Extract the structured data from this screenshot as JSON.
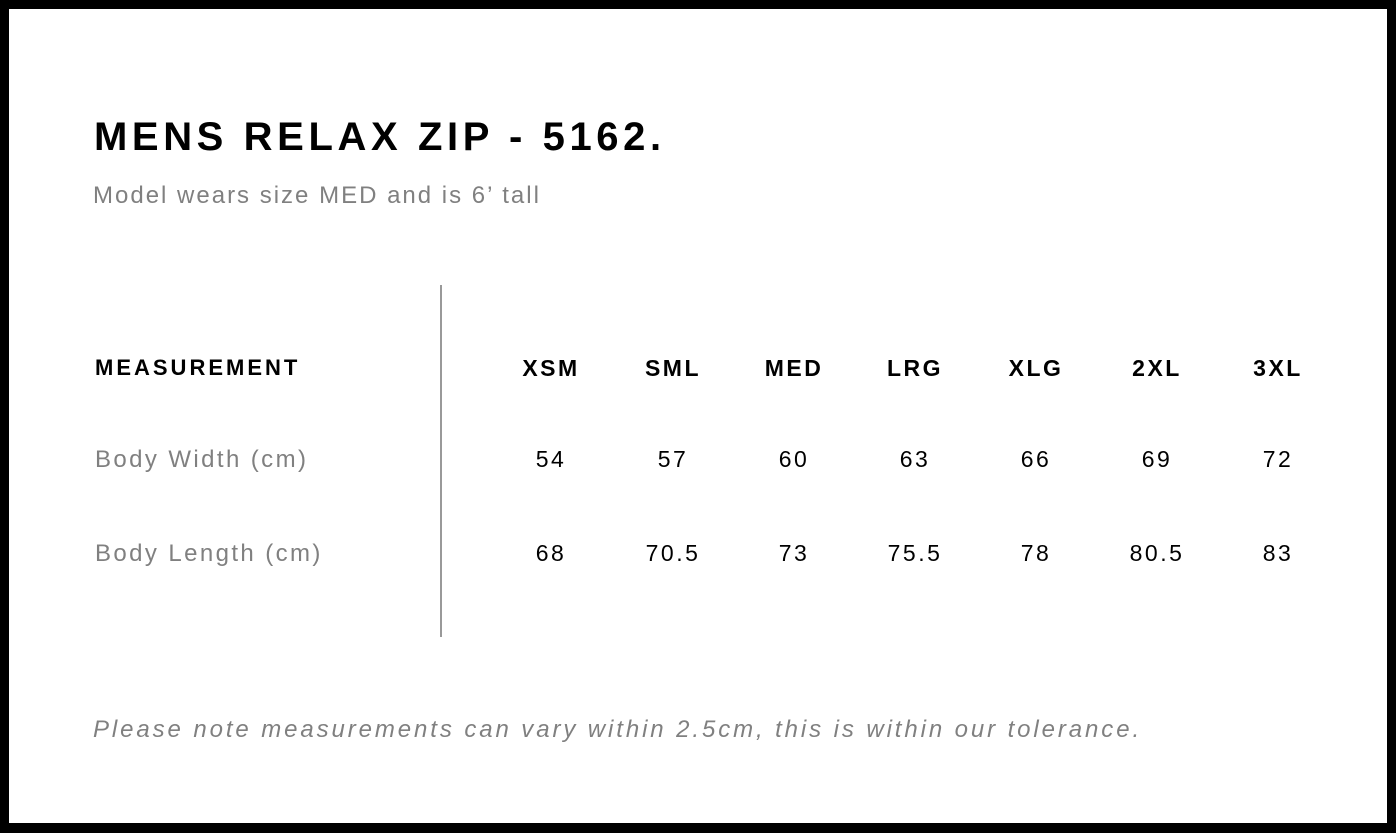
{
  "title": "MENS RELAX ZIP - 5162.",
  "subtitle": "Model wears size MED and is 6’ tall",
  "table": {
    "header_label": "MEASUREMENT",
    "sizes": [
      "XSM",
      "SML",
      "MED",
      "LRG",
      "XLG",
      "2XL",
      "3XL"
    ],
    "rows": [
      {
        "label": "Body Width (cm)",
        "values": [
          "54",
          "57",
          "60",
          "63",
          "66",
          "69",
          "72"
        ]
      },
      {
        "label": "Body Length (cm)",
        "values": [
          "68",
          "70.5",
          "73",
          "75.5",
          "78",
          "80.5",
          "83"
        ]
      }
    ]
  },
  "note": "Please note measurements can vary within 2.5cm, this is within our tolerance."
}
